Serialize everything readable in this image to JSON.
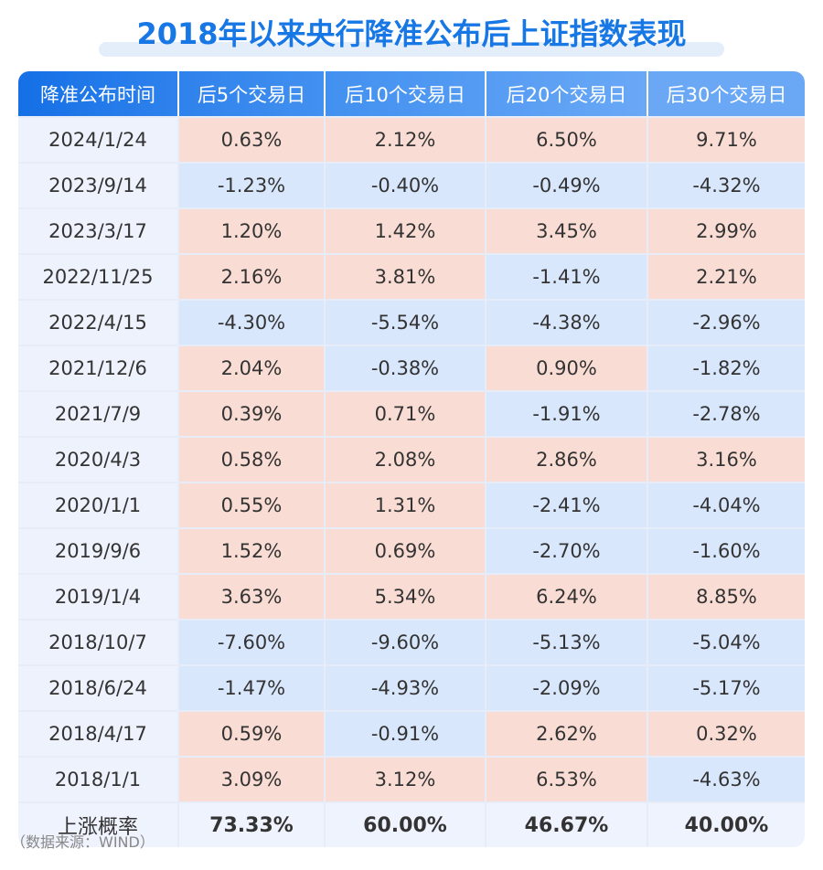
{
  "title": "2018年以来央行降准公布后上证指数表现",
  "chart_data": {
    "type": "table",
    "columns": [
      "降准公布时间",
      "后5个交易日",
      "后10个交易日",
      "后20个交易日",
      "后30个交易日"
    ],
    "rows": [
      [
        "2024/1/24",
        "0.63%",
        "2.12%",
        "6.50%",
        "9.71%"
      ],
      [
        "2023/9/14",
        "-1.23%",
        "-0.40%",
        "-0.49%",
        "-4.32%"
      ],
      [
        "2023/3/17",
        "1.20%",
        "1.42%",
        "3.45%",
        "2.99%"
      ],
      [
        "2022/11/25",
        "2.16%",
        "3.81%",
        "-1.41%",
        "2.21%"
      ],
      [
        "2022/4/15",
        "-4.30%",
        "-5.54%",
        "-4.38%",
        "-2.96%"
      ],
      [
        "2021/12/6",
        "2.04%",
        "-0.38%",
        "0.90%",
        "-1.82%"
      ],
      [
        "2021/7/9",
        "0.39%",
        "0.71%",
        "-1.91%",
        "-2.78%"
      ],
      [
        "2020/4/3",
        "0.58%",
        "2.08%",
        "2.86%",
        "3.16%"
      ],
      [
        "2020/1/1",
        "0.55%",
        "1.31%",
        "-2.41%",
        "-4.04%"
      ],
      [
        "2019/9/6",
        "1.52%",
        "0.69%",
        "-2.70%",
        "-1.60%"
      ],
      [
        "2019/1/4",
        "3.63%",
        "5.34%",
        "6.24%",
        "8.85%"
      ],
      [
        "2018/10/7",
        "-7.60%",
        "-9.60%",
        "-5.13%",
        "-5.04%"
      ],
      [
        "2018/6/24",
        "-1.47%",
        "-4.93%",
        "-2.09%",
        "-5.17%"
      ],
      [
        "2018/4/17",
        "0.59%",
        "-0.91%",
        "2.62%",
        "0.32%"
      ],
      [
        "2018/1/1",
        "3.09%",
        "3.12%",
        "6.53%",
        "-4.63%"
      ]
    ],
    "summary": [
      "上涨概率",
      "73.33%",
      "60.00%",
      "46.67%",
      "40.00%"
    ]
  },
  "colors": {
    "header_start": "#1570e6",
    "header_end": "#6aa8f6",
    "positive": "#f9ddd4",
    "negative": "#d9e7fc",
    "title": "#1677e5"
  },
  "source": "（数据来源：WIND）"
}
